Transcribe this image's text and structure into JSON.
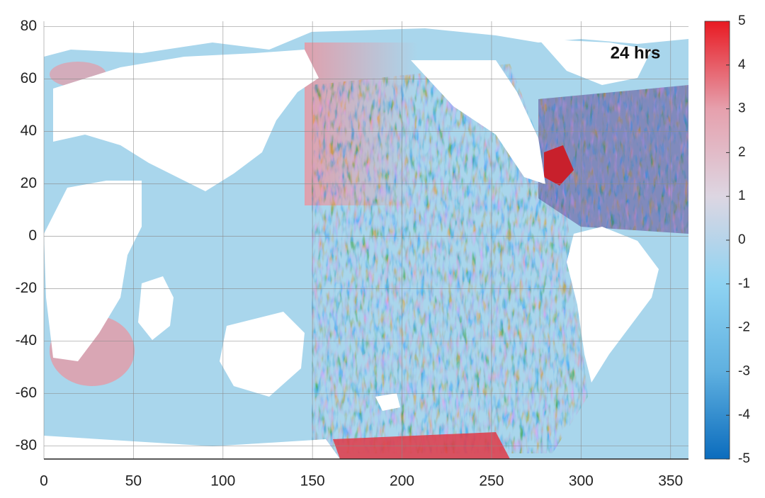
{
  "chart_data": {
    "type": "map",
    "annotation": "24 hrs",
    "xlim": [
      0,
      360
    ],
    "xticks": [
      0,
      50,
      100,
      150,
      200,
      250,
      300,
      350
    ],
    "ylim": [
      -85,
      82
    ],
    "yticks": [
      -80,
      -60,
      -40,
      -20,
      0,
      20,
      40,
      60,
      80
    ],
    "grid": true,
    "colorbar": {
      "lim": [
        -5,
        5
      ],
      "ticks": [
        -5,
        -4,
        -3,
        -2,
        -1,
        0,
        1,
        2,
        3,
        4,
        5
      ],
      "colormap": [
        "#0b6cbd",
        "#5fb0e0",
        "#8fd3f2",
        "#ddd6e2",
        "#e6a0ad",
        "#e81a22"
      ]
    }
  }
}
